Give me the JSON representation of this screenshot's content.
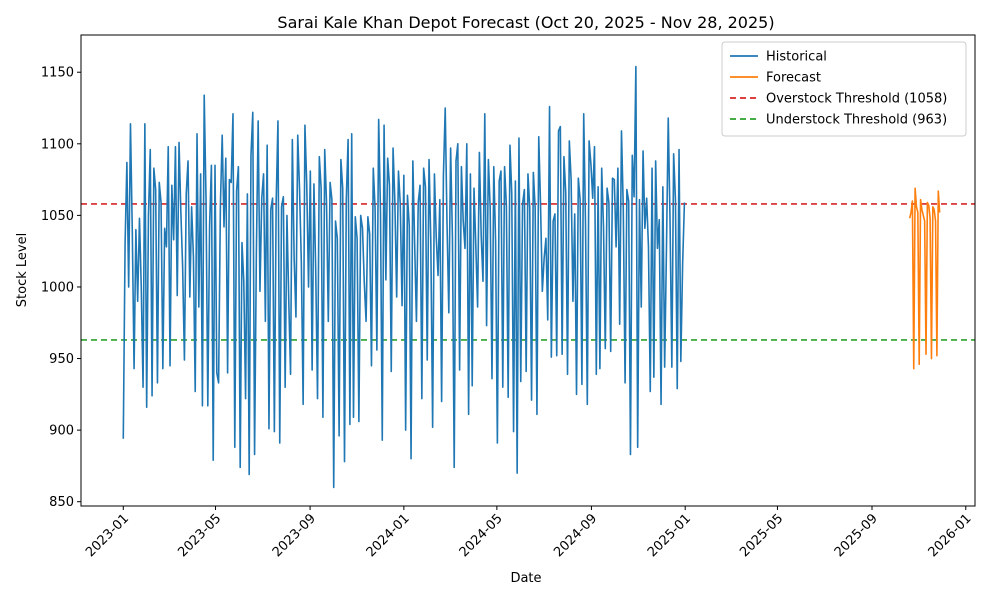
{
  "chart_data": {
    "type": "line",
    "title": "Sarai Kale Khan Depot Forecast (Oct 20, 2025 - Nov 28, 2025)",
    "xlabel": "Date",
    "ylabel": "Stock Level",
    "xlim": [
      "2022-11-07",
      "2026-01-13"
    ],
    "ylim": [
      847,
      1176
    ],
    "x_ticks": [
      "2023-01",
      "2023-05",
      "2023-09",
      "2024-01",
      "2024-05",
      "2024-09",
      "2025-01",
      "2025-05",
      "2025-09",
      "2026-01"
    ],
    "y_ticks": [
      850,
      900,
      950,
      1000,
      1050,
      1100,
      1150
    ],
    "grid": false,
    "legend": {
      "location": "upper right",
      "entries": [
        "Historical",
        "Forecast",
        "Overstock Threshold (1058)",
        "Understock Threshold (963)"
      ]
    },
    "thresholds": [
      {
        "name": "Overstock Threshold (1058)",
        "value": 1058,
        "color": "#d62728",
        "style": "dashed"
      },
      {
        "name": "Understock Threshold (963)",
        "value": 963,
        "color": "#2ca02c",
        "style": "dashed"
      }
    ],
    "series": [
      {
        "name": "Historical",
        "color": "#1f77b4",
        "x_start": "2023-01-01",
        "x_end": "2024-12-31",
        "values": [
          894,
          1030,
          1087,
          1000,
          1114,
          1040,
          943,
          1040,
          990,
          1048,
          1000,
          930,
          1114,
          916,
          1050,
          1096,
          924,
          1083,
          1068,
          933,
          1073,
          1059,
          943,
          1041,
          1028,
          1098,
          945,
          1071,
          1033,
          1098,
          994,
          1101,
          1053,
          1014,
          949,
          1065,
          1088,
          993,
          1056,
          1021,
          927,
          1107,
          986,
          1079,
          917,
          1134,
          1062,
          917,
          1043,
          1085,
          879,
          1085,
          940,
          933,
          1057,
          1106,
          1042,
          1090,
          940,
          1075,
          1073,
          1121,
          888,
          1067,
          1084,
          874,
          1031,
          1004,
          922,
          1065,
          869,
          1092,
          1122,
          883,
          1024,
          1116,
          997,
          1062,
          1079,
          976,
          1099,
          901,
          1054,
          1062,
          899,
          1059,
          1116,
          891,
          1056,
          1063,
          930,
          1050,
          991,
          939,
          1103,
          1020,
          979,
          1106,
          1068,
          1017,
          918,
          1113,
          1072,
          1000,
          1081,
          942,
          1072,
          1011,
          922,
          1091,
          1069,
          909,
          1096,
          1059,
          976,
          1073,
          1061,
          860,
          1046,
          1034,
          896,
          1089,
          1069,
          878,
          1061,
          1103,
          904,
          1107,
          909,
          1049,
          1034,
          906,
          1050,
          1041,
          1003,
          976,
          1049,
          1037,
          945,
          1083,
          1055,
          956,
          1117,
          1053,
          893,
          1113,
          1005,
          1090,
          1071,
          941,
          1097,
          1060,
          993,
          1081,
          1058,
          987,
          1078,
          900,
          1064,
          1043,
          880,
          1088,
          1030,
          976,
          1059,
          1071,
          922,
          1083,
          1070,
          949,
          1089,
          1031,
          902,
          1079,
          1035,
          1008,
          1061,
          920,
          1078,
          1125,
          1044,
          982,
          1097,
          1035,
          874,
          1088,
          1100,
          942,
          1084,
          1046,
          1027,
          1100,
          911,
          1079,
          931,
          1069,
          1029,
          986,
          1094,
          1036,
          1004,
          1121,
          973,
          1089,
          1055,
          936,
          1084,
          1032,
          891,
          1074,
          1081,
          930,
          1084,
          1057,
          923,
          1099,
          1065,
          899,
          1074,
          870,
          1104,
          934,
          1058,
          1068,
          941,
          1079,
          1055,
          921,
          1080,
          1055,
          911,
          1105,
          1057,
          997,
          1020,
          1034,
          977,
          1126,
          951,
          1046,
          1051,
          952,
          1109,
          1112,
          953,
          1091,
          1066,
          939,
          1102,
          1075,
          990,
          1051,
          925,
          1076,
          1061,
          932,
          1121,
          1044,
          918,
          1102,
          1086,
          1062,
          1098,
          939,
          1070,
          943,
          1083,
          1042,
          957,
          1069,
          1059,
          955,
          1076,
          1075,
          1028,
          1083,
          974,
          1109,
          1055,
          933,
          1068,
          1060,
          883,
          1092,
          1063,
          1154,
          888,
          1061,
          986,
          1095,
          1041,
          1062,
          1028,
          927,
          1083,
          937,
          1088,
          1027,
          1047,
          918,
          1070,
          944,
          1026,
          1118,
          1046,
          944,
          1093,
          1061,
          929,
          1096,
          948,
          1016,
          1059
        ]
      },
      {
        "name": "Forecast",
        "color": "#ff7f0e",
        "x_start": "2025-10-20",
        "x_end": "2025-11-28",
        "values": [
          1048,
          1052,
          1060,
          943,
          1069,
          1056,
          1052,
          946,
          1061,
          1054,
          1050,
          1046,
          953,
          1059,
          1057,
          1048,
          950,
          1056,
          1054,
          1046,
          952,
          1067,
          1052
        ]
      }
    ]
  }
}
